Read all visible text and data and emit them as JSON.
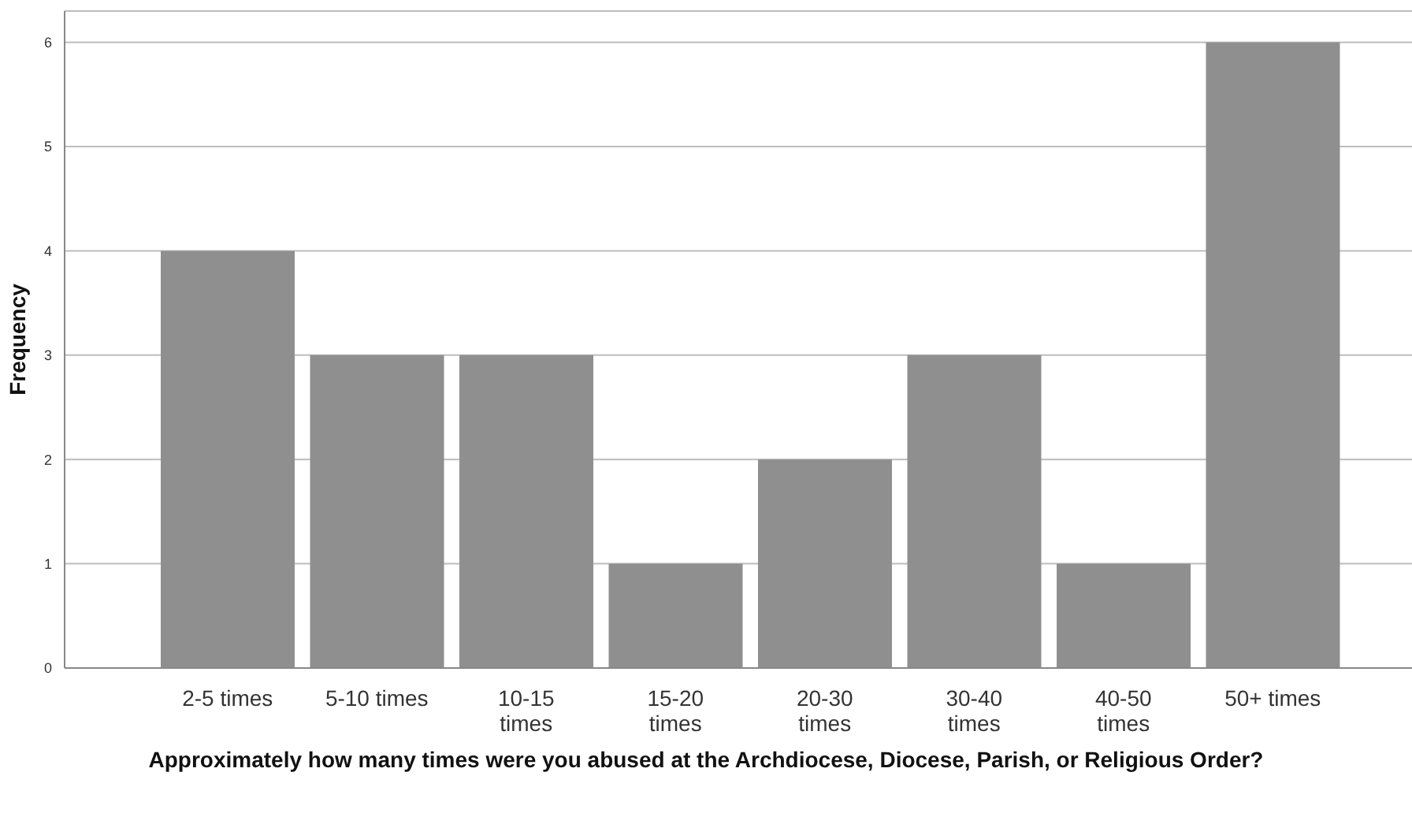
{
  "chart_data": {
    "type": "bar",
    "xlabel": "Approximately how many times were you abused at the Archdiocese, Diocese, Parish, or Religious Order?",
    "ylabel": "Frequency",
    "categories": [
      "2-5 times",
      "5-10 times",
      "10-15 times",
      "15-20 times",
      "20-30 times",
      "30-40 times",
      "40-50 times",
      "50+ times"
    ],
    "values": [
      4,
      3,
      3,
      1,
      2,
      3,
      1,
      6
    ],
    "color": "#8f8f8f",
    "ylim": [
      0,
      6.3
    ],
    "yticks": [
      0,
      1,
      2,
      3,
      4,
      5,
      6
    ],
    "grid": "y"
  }
}
